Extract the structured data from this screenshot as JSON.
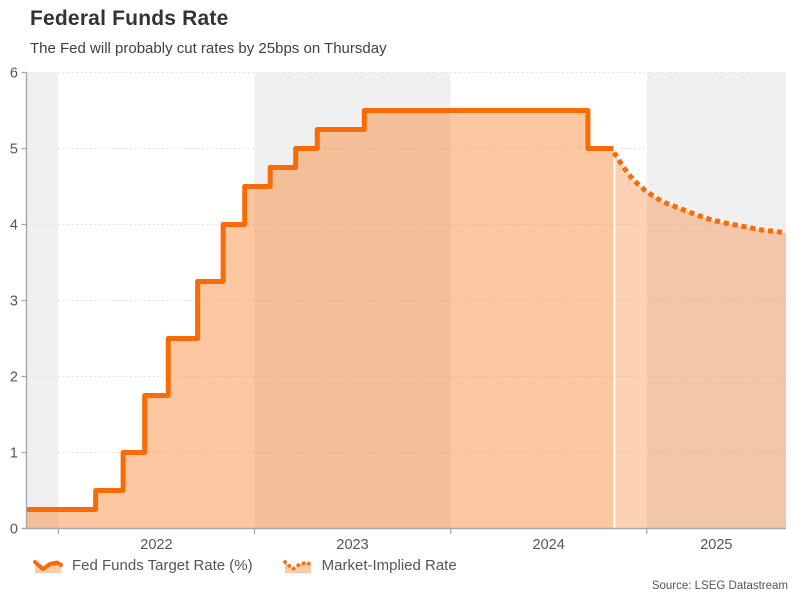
{
  "header": {
    "title": "Federal Funds Rate",
    "subtitle": "The Fed will probably cut rates by 25bps on Thursday"
  },
  "source": "Source: LSEG Datastream",
  "legend": [
    {
      "label": "Fed Funds Target Rate (%)",
      "style": "solid"
    },
    {
      "label": "Market-Implied Rate",
      "style": "dotted"
    }
  ],
  "colors": {
    "line": "#F86B07",
    "fill": "#F86B07",
    "fill_opacity_hist": 0.38,
    "fill_opacity_implied": 0.3,
    "band": "#F0F0F0",
    "grid": "#DBDBDB",
    "axis": "#A8A8A8",
    "tick_text": "#555555",
    "title_text": "#333333"
  },
  "chart_data": {
    "type": "area",
    "title": "Federal Funds Rate",
    "subtitle": "The Fed will probably cut rates by 25bps on Thursday",
    "xlabel": "",
    "ylabel": "",
    "ylim": [
      0,
      6
    ],
    "yticks": [
      0,
      1,
      2,
      3,
      4,
      5,
      6
    ],
    "xlim_decimal_years": [
      2021.84,
      2025.71
    ],
    "xticks_years": [
      2022,
      2023,
      2024,
      2025
    ],
    "shaded_years": [
      2021,
      2023,
      2025
    ],
    "grid": "horizontal-dotted",
    "legend_position": "bottom-left",
    "series": [
      {
        "name": "Fed Funds Target Rate (%)",
        "style": "step-solid",
        "points": [
          [
            2021.84,
            0.25
          ],
          [
            2022.19,
            0.5
          ],
          [
            2022.33,
            1.0
          ],
          [
            2022.44,
            1.75
          ],
          [
            2022.56,
            2.5
          ],
          [
            2022.71,
            3.25
          ],
          [
            2022.84,
            4.0
          ],
          [
            2022.95,
            4.5
          ],
          [
            2023.08,
            4.75
          ],
          [
            2023.21,
            5.0
          ],
          [
            2023.32,
            5.25
          ],
          [
            2023.56,
            5.5
          ],
          [
            2024.7,
            5.0
          ],
          [
            2024.83,
            5.0
          ]
        ]
      },
      {
        "name": "Market-Implied Rate",
        "style": "dotted",
        "points": [
          [
            2024.84,
            4.92
          ],
          [
            2024.88,
            4.76
          ],
          [
            2024.93,
            4.59
          ],
          [
            2025.0,
            4.43
          ],
          [
            2025.08,
            4.3
          ],
          [
            2025.17,
            4.21
          ],
          [
            2025.25,
            4.13
          ],
          [
            2025.33,
            4.06
          ],
          [
            2025.42,
            4.01
          ],
          [
            2025.5,
            3.97
          ],
          [
            2025.58,
            3.93
          ],
          [
            2025.65,
            3.91
          ],
          [
            2025.71,
            3.89
          ]
        ]
      }
    ]
  }
}
